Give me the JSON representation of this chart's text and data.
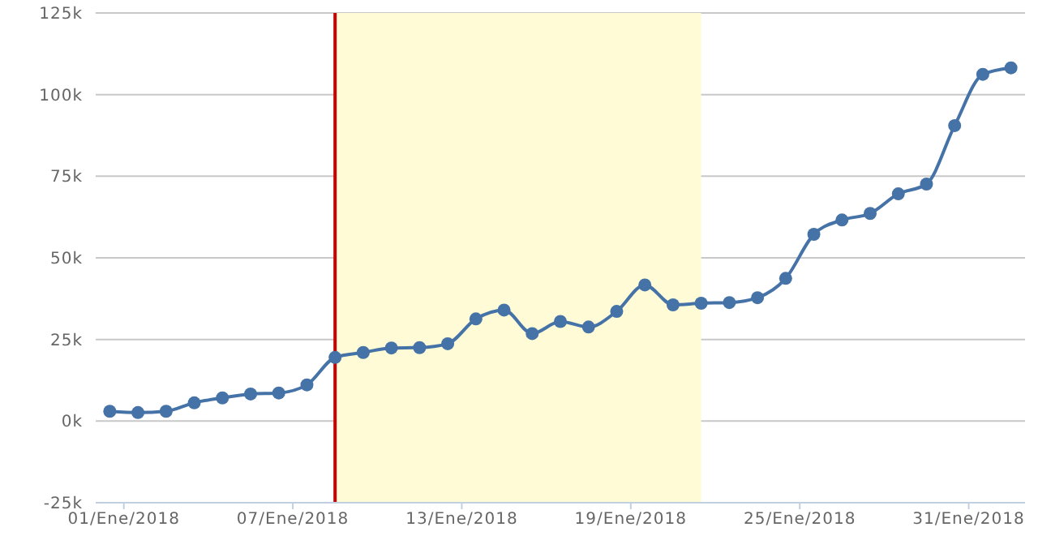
{
  "chart_data": {
    "type": "line",
    "x": [
      "2018-01-01",
      "2018-01-02",
      "2018-01-03",
      "2018-01-04",
      "2018-01-05",
      "2018-01-06",
      "2018-01-07",
      "2018-01-08",
      "2018-01-09",
      "2018-01-10",
      "2018-01-11",
      "2018-01-12",
      "2018-01-13",
      "2018-01-14",
      "2018-01-15",
      "2018-01-16",
      "2018-01-17",
      "2018-01-18",
      "2018-01-19",
      "2018-01-20",
      "2018-01-21",
      "2018-01-22",
      "2018-01-23",
      "2018-01-24",
      "2018-01-25",
      "2018-01-26",
      "2018-01-27",
      "2018-01-28",
      "2018-01-29",
      "2018-01-30",
      "2018-01-31",
      "2018-02-01",
      "2018-02-02"
    ],
    "series": [
      {
        "color": "#4572a7",
        "values": [
          3000,
          2600,
          3000,
          5600,
          7100,
          8300,
          8600,
          11100,
          19500,
          21000,
          22400,
          22500,
          23700,
          31300,
          34000,
          26800,
          30500,
          28800,
          33600,
          41700,
          35600,
          36100,
          36300,
          37800,
          43700,
          57200,
          61600,
          63600,
          69600,
          72600,
          90500,
          106200,
          108200
        ]
      }
    ],
    "xlim": [
      "2017-12-31T12:00",
      "2018-02-02T12:00"
    ],
    "xticks": [
      {
        "value": "2018-01-01T12:00",
        "label": "01/Ene/2018"
      },
      {
        "value": "2018-01-07T12:00",
        "label": "07/Ene/2018"
      },
      {
        "value": "2018-01-13T12:00",
        "label": "13/Ene/2018"
      },
      {
        "value": "2018-01-19T12:00",
        "label": "19/Ene/2018"
      },
      {
        "value": "2018-01-25T12:00",
        "label": "25/Ene/2018"
      },
      {
        "value": "2018-01-31T12:00",
        "label": "31/Ene/2018"
      }
    ],
    "ylim": [
      -25000,
      125000
    ],
    "yticks": [
      {
        "value": -25000,
        "label": "-25k"
      },
      {
        "value": 0,
        "label": "0k"
      },
      {
        "value": 25000,
        "label": "25k"
      },
      {
        "value": 50000,
        "label": "50k"
      },
      {
        "value": 75000,
        "label": "75k"
      },
      {
        "value": 100000,
        "label": "100k"
      },
      {
        "value": 125000,
        "label": "125k"
      }
    ],
    "ref_lines": [
      {
        "axis": "x",
        "value": "2018-01-09",
        "color": "#cc0000"
      }
    ],
    "bands": [
      {
        "axis": "x",
        "from": "2018-01-09",
        "to": "2018-01-22",
        "color": "#fefbd6"
      }
    ],
    "grid": "y",
    "legend": false,
    "marker": "circle",
    "line_style": "solid"
  }
}
